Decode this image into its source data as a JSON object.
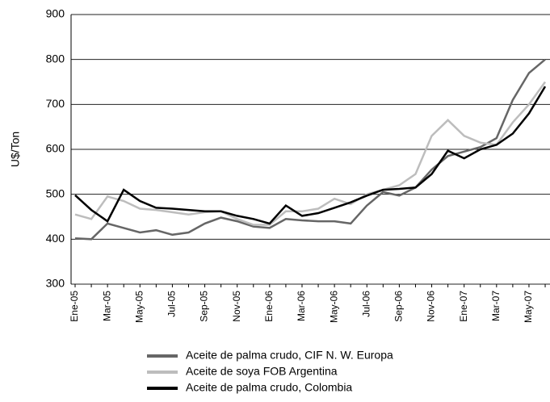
{
  "chart_data": {
    "type": "line",
    "y_label": "U$/Ton",
    "categories": [
      "Ene-05",
      null,
      "Mar-05",
      null,
      "May-05",
      null,
      "Jul-05",
      null,
      "Sep-05",
      null,
      "Nov-05",
      null,
      "Ene-06",
      null,
      "Mar-06",
      null,
      "May-06",
      null,
      "Jul-06",
      null,
      "Sep-06",
      null,
      "Nov-06",
      null,
      "Ene-07",
      null,
      "Mar-07",
      null,
      "May-07",
      null
    ],
    "series": [
      {
        "name": "Aceite de palma crudo, CIF N. W. Europa",
        "color": "#666666",
        "values": [
          402,
          400,
          435,
          425,
          415,
          420,
          410,
          415,
          435,
          448,
          440,
          428,
          425,
          445,
          442,
          440,
          440,
          435,
          475,
          505,
          497,
          515,
          555,
          585,
          595,
          605,
          625,
          710,
          770,
          800
        ]
      },
      {
        "name": "Aceite de soya FOB Argentina",
        "color": "#bdbdbd",
        "values": [
          455,
          445,
          495,
          485,
          468,
          465,
          460,
          455,
          460,
          462,
          445,
          432,
          432,
          462,
          462,
          468,
          490,
          478,
          500,
          510,
          520,
          545,
          630,
          665,
          630,
          615,
          610,
          660,
          700,
          750
        ]
      },
      {
        "name": "Aceite de palma crudo, Colombia",
        "color": "#000000",
        "values": [
          498,
          465,
          440,
          510,
          485,
          470,
          468,
          465,
          462,
          462,
          452,
          445,
          435,
          475,
          452,
          458,
          470,
          482,
          497,
          510,
          512,
          515,
          545,
          597,
          580,
          600,
          610,
          635,
          680,
          740
        ]
      }
    ],
    "ylim": [
      300,
      900
    ],
    "yticks": [
      300,
      400,
      500,
      600,
      700,
      800,
      900
    ],
    "grid": true
  }
}
